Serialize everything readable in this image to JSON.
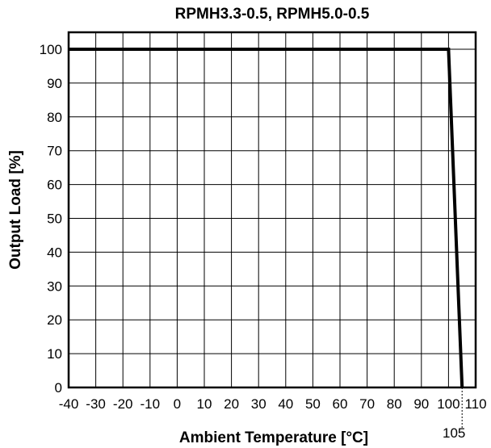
{
  "chart_data": {
    "type": "line",
    "title": "RPMH3.3-0.5, RPMH5.0-0.5",
    "xlabel": "Ambient Temperature [°C]",
    "ylabel": "Output Load [%]",
    "xlim": [
      -40,
      110
    ],
    "ylim": [
      0,
      105
    ],
    "xticks": [
      -40,
      -30,
      -20,
      -10,
      0,
      10,
      20,
      30,
      40,
      50,
      60,
      70,
      80,
      90,
      100,
      110
    ],
    "yticks": [
      0,
      10,
      20,
      30,
      40,
      50,
      60,
      70,
      80,
      90,
      100
    ],
    "grid": true,
    "series": [
      {
        "x": [
          -40,
          100,
          105
        ],
        "y": [
          100,
          100,
          0
        ]
      }
    ],
    "annotations": [
      {
        "text": "105",
        "x": 105
      }
    ]
  }
}
